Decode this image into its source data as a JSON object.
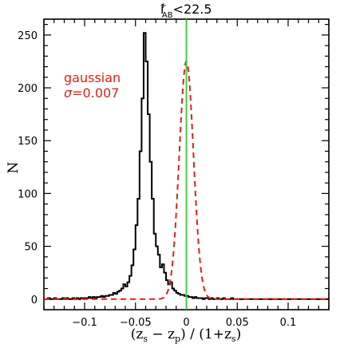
{
  "chart_data": {
    "type": "histogram",
    "title": {
      "main": "i",
      "superscript": "+",
      "subscript": "AB",
      "suffix": "<22.5"
    },
    "xlabel": {
      "prefix": "(z",
      "sub1": "s",
      "middle": " − z",
      "sub2": "p",
      "middle2": ") / (1+z",
      "sub3": "s",
      "suffix": ")"
    },
    "ylabel": "N",
    "xlim": [
      -0.14,
      0.14
    ],
    "ylim": [
      -10,
      265
    ],
    "xticks": [
      -0.1,
      -0.05,
      0,
      0.05,
      0.1
    ],
    "xtick_labels": [
      "−0.1",
      "−0.05",
      "0",
      "0.05",
      "0.1"
    ],
    "yticks": [
      0,
      50,
      100,
      150,
      200,
      250
    ],
    "ytick_labels": [
      "0",
      "50",
      "100",
      "150",
      "200",
      "250"
    ],
    "annotations": {
      "line1": "gaussian",
      "line2_symbol": "σ",
      "line2_value": "=0.007"
    },
    "vertical_line": {
      "x": 0,
      "color": "#33cc33"
    },
    "histogram": {
      "name": "data",
      "color": "#000000",
      "bin_width": 0.002,
      "bin_start": -0.14,
      "counts": [
        0,
        0,
        1,
        0,
        0,
        1,
        0,
        0,
        0,
        1,
        0,
        1,
        0,
        0,
        1,
        0,
        1,
        0,
        1,
        1,
        1,
        1,
        2,
        1,
        2,
        1,
        2,
        2,
        3,
        2,
        3,
        3,
        4,
        4,
        6,
        5,
        7,
        8,
        10,
        14,
        12,
        16,
        22,
        32,
        47,
        70,
        95,
        140,
        190,
        252,
        225,
        175,
        130,
        95,
        62,
        50,
        42,
        30,
        33,
        25,
        18,
        14,
        16,
        10,
        8,
        6,
        5,
        4,
        4,
        3,
        3,
        2,
        2,
        1,
        2,
        1,
        1,
        1,
        0,
        1,
        1,
        0,
        1,
        0,
        0,
        1,
        0,
        0,
        1,
        0,
        0,
        0,
        1,
        0,
        0,
        0,
        0,
        0,
        0,
        0,
        0,
        0,
        0,
        0,
        0,
        0,
        0,
        0,
        0,
        0,
        0,
        0,
        0,
        0,
        0,
        0,
        0,
        0,
        0,
        0,
        0,
        0,
        0,
        0,
        0,
        0,
        0,
        0,
        0,
        0,
        0,
        0,
        0,
        0,
        0,
        0,
        0,
        0,
        0,
        0
      ]
    },
    "gaussian": {
      "name": "gaussian",
      "color": "#e0201a",
      "style": "dashed",
      "amplitude": 225,
      "mean": 0,
      "sigma": 0.007,
      "tail_amplitude": 40,
      "tail_sigma": 0.02
    },
    "grid": false,
    "legend": "none"
  }
}
